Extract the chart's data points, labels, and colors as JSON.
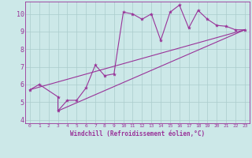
{
  "xlabel": "Windchill (Refroidissement éolien,°C)",
  "background_color": "#cce8e8",
  "line_color": "#993399",
  "grid_color": "#aacccc",
  "xlim": [
    -0.5,
    23.5
  ],
  "ylim": [
    3.8,
    10.7
  ],
  "yticks": [
    4,
    5,
    6,
    7,
    8,
    9,
    10
  ],
  "xticks": [
    0,
    1,
    2,
    3,
    4,
    5,
    6,
    7,
    8,
    9,
    10,
    11,
    12,
    13,
    14,
    15,
    16,
    17,
    18,
    19,
    20,
    21,
    22,
    23
  ],
  "series": [
    [
      0,
      5.7
    ],
    [
      1,
      6.0
    ],
    [
      3,
      5.3
    ],
    [
      3,
      4.5
    ],
    [
      4,
      5.1
    ],
    [
      5,
      5.1
    ],
    [
      6,
      5.8
    ],
    [
      7,
      7.1
    ],
    [
      8,
      6.5
    ],
    [
      9,
      6.6
    ],
    [
      10,
      10.1
    ],
    [
      11,
      10.0
    ],
    [
      12,
      9.7
    ],
    [
      13,
      10.0
    ],
    [
      14,
      8.5
    ],
    [
      15,
      10.1
    ],
    [
      16,
      10.5
    ],
    [
      17,
      9.2
    ],
    [
      18,
      10.2
    ],
    [
      19,
      9.7
    ],
    [
      20,
      9.35
    ],
    [
      21,
      9.3
    ],
    [
      22,
      9.1
    ],
    [
      23,
      9.1
    ]
  ],
  "line2": [
    [
      0,
      5.7
    ],
    [
      23,
      9.1
    ]
  ],
  "line3": [
    [
      3,
      4.5
    ],
    [
      23,
      9.1
    ]
  ],
  "marker": "*",
  "marker_size": 3,
  "linewidth": 0.8,
  "tick_fontsize": 5.5,
  "xlabel_fontsize": 5.5
}
